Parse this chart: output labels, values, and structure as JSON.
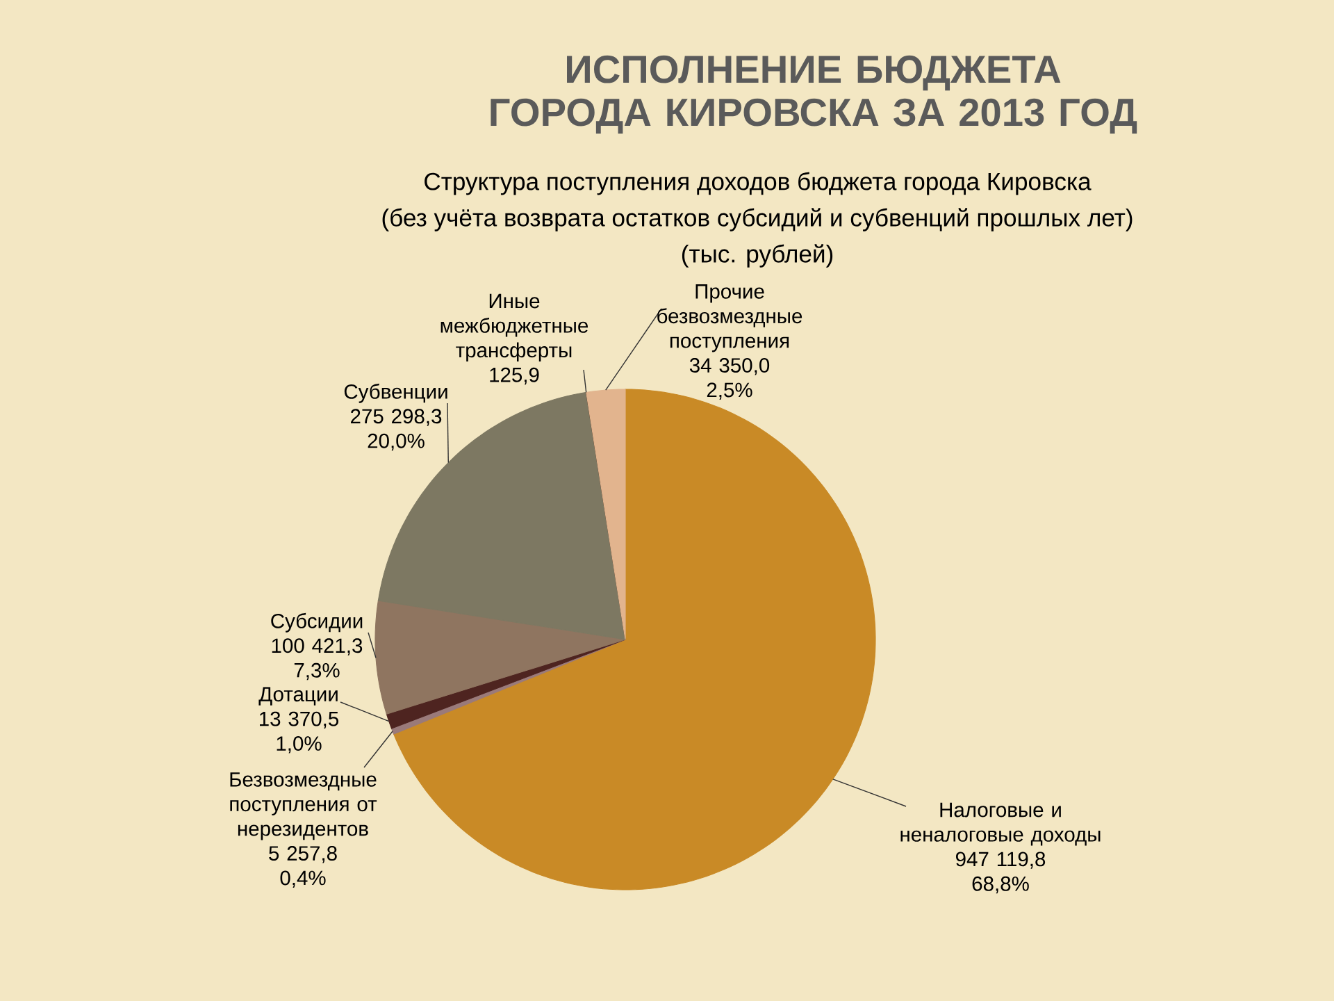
{
  "chart_data": {
    "type": "pie",
    "title": "ИСПОЛНЕНИЕ БЮДЖЕТА ГОРОДА КИРОВСКА ЗА 2013 ГОД",
    "subtitle": "Структура поступления доходов бюджета города Кировска",
    "categories": [
      "Налоговые и неналоговые доходы",
      "Безвозмездные поступления от нерезидентов",
      "Дотации",
      "Субсидии",
      "Субвенции",
      "Иные межбюджетные трансферты",
      "Прочие безвозмездные поступления"
    ],
    "values": [
      947119.8,
      5257.8,
      13370.5,
      100421.3,
      275298.3,
      125.9,
      34350.0
    ],
    "value_labels": [
      "947 119,8",
      "5 257,8",
      "13 370,5",
      "100 421,3",
      "275 298,3",
      "125,9",
      "34 350,0"
    ],
    "colors": [
      "#c98a26",
      "#9a7a7a",
      "#4e2420",
      "#8f7560",
      "#7d7862",
      "#4a3426",
      "#e2b48e"
    ],
    "annotations": [
      "(без учёта возврата остатков субсидий и субвенций прошлых лет)",
      "(тыс. рублей)",
      {
        "text": "68,8%",
        "x": "Налоговые и неналоговые доходы"
      },
      {
        "text": "0,4%",
        "x": "Безвозмездные поступления от нерезидентов"
      },
      {
        "text": "1,0%",
        "x": "Дотации"
      },
      {
        "text": "7,3%",
        "x": "Субсидии"
      },
      {
        "text": "20,0%",
        "x": "Субвенции"
      },
      {
        "text": "2,5%",
        "x": "Прочие безвозмездные поступления"
      }
    ]
  }
}
